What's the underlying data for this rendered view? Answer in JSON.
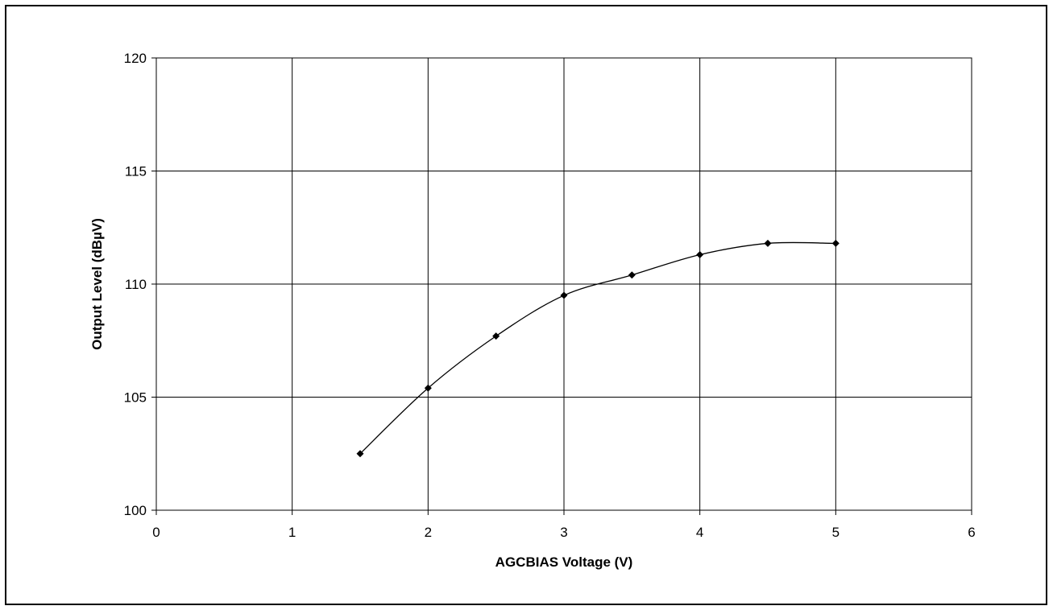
{
  "chart_data": {
    "type": "line",
    "title": "",
    "xlabel": "AGCBIAS Voltage (V)",
    "ylabel": "Output Level (dBµV)",
    "xlim": [
      0,
      6
    ],
    "ylim": [
      100,
      120
    ],
    "xticks": [
      "0",
      "1",
      "2",
      "3",
      "4",
      "5",
      "6"
    ],
    "yticks": [
      "100",
      "105",
      "110",
      "115",
      "120"
    ],
    "grid": true,
    "legend": "none",
    "marker": "diamond",
    "smoothed": true,
    "series": [
      {
        "x": [
          1.5,
          2.0,
          2.5,
          3.0,
          3.5,
          4.0,
          4.5,
          5.0
        ],
        "y": [
          102.5,
          105.4,
          107.7,
          109.5,
          110.4,
          111.3,
          111.8,
          111.8
        ]
      }
    ],
    "colors": {
      "line": "#000000",
      "grid": "#000000",
      "marker": "#000000"
    }
  }
}
